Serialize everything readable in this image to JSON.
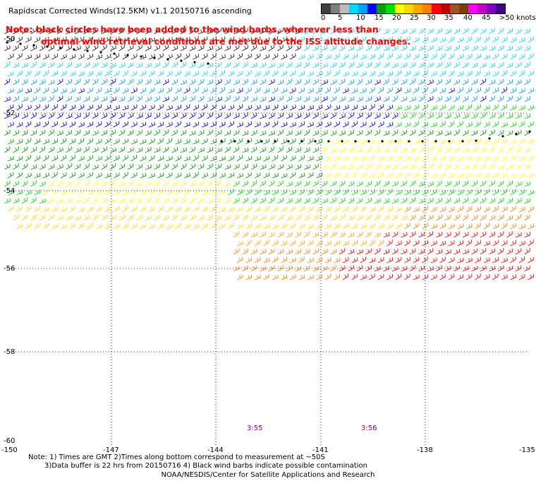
{
  "title": "Rapidscat Corrected Winds(12.5KM) v1.1 20150716 ascending",
  "note": {
    "line1": "Note: black circles have been added to the wind barbs, wherever less than",
    "line2": "optimal wind retrieval conditions are met due to the ISS altitude changes."
  },
  "legend": {
    "colors": [
      "#404040",
      "#7f7f7f",
      "#bdbdbd",
      "#00d9ff",
      "#00a0ff",
      "#0000ff",
      "#00a000",
      "#00e000",
      "#ffff00",
      "#ffd700",
      "#ffa500",
      "#ff7f00",
      "#ff0000",
      "#c00000",
      "#a0522d",
      "#7f3f00",
      "#ff00ff",
      "#c000c0",
      "#8000c0",
      "#400080"
    ],
    "labels": [
      "0",
      "5",
      "10",
      "15",
      "20",
      "25",
      "30",
      "35",
      "40",
      "45",
      ">50 knots"
    ]
  },
  "axes": {
    "lat_labels": [
      "-50",
      "-52",
      "-54",
      "-56",
      "-58",
      "-60"
    ],
    "lon_labels": [
      "-150",
      "-147",
      "-144",
      "-141",
      "-138",
      "-135"
    ]
  },
  "time_labels": [
    "3:55",
    "3:56"
  ],
  "footnotes": {
    "line1": "Note: 1) Times are GMT 2)Times along bottom correspond to measurement at ~50S",
    "line2": "3)Data buffer is 22 hrs from 20150716 4) Black wind barbs indicate possible contamination"
  },
  "credit": "NOAA/NESDIS/Center for Satellite Applications and Research"
}
